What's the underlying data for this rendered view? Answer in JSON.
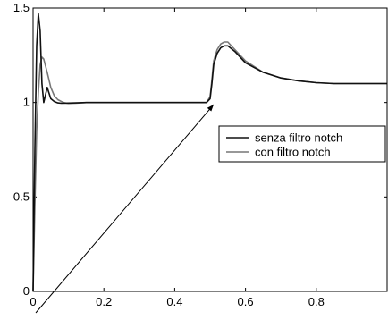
{
  "chart_data": {
    "type": "line",
    "title": "",
    "xlabel": "",
    "ylabel": "",
    "xlim": [
      0,
      1
    ],
    "ylim": [
      0,
      1.5
    ],
    "x_ticks": [
      0,
      0.2,
      0.4,
      0.6,
      0.8
    ],
    "x_tick_labels": [
      "0",
      "0.2",
      "0.4",
      "0.6",
      "0.8"
    ],
    "y_ticks": [
      0,
      0.5,
      1,
      1.5
    ],
    "y_tick_labels": [
      "0",
      "0.5",
      "1",
      "1.5"
    ],
    "grid": false,
    "legend_position": "center-right",
    "series": [
      {
        "name": "senza filtro notch",
        "color": "#111111",
        "x": [
          0,
          0.005,
          0.01,
          0.015,
          0.02,
          0.025,
          0.03,
          0.04,
          0.05,
          0.06,
          0.07,
          0.08,
          0.1,
          0.15,
          0.2,
          0.3,
          0.4,
          0.49,
          0.5,
          0.505,
          0.51,
          0.52,
          0.53,
          0.54,
          0.55,
          0.57,
          0.6,
          0.65,
          0.7,
          0.75,
          0.8,
          0.85,
          0.9,
          0.95,
          1.0
        ],
        "y": [
          0,
          0.75,
          1.3,
          1.47,
          1.38,
          1.1,
          1.0,
          1.08,
          1.02,
          1.005,
          0.998,
          0.996,
          0.997,
          1.0,
          1.0,
          1.0,
          1.0,
          1.0,
          1.02,
          1.1,
          1.2,
          1.26,
          1.29,
          1.3,
          1.3,
          1.27,
          1.21,
          1.16,
          1.13,
          1.115,
          1.105,
          1.1,
          1.1,
          1.1,
          1.1
        ]
      },
      {
        "name": "con filtro notch",
        "color": "#777777",
        "x": [
          0,
          0.005,
          0.01,
          0.015,
          0.02,
          0.025,
          0.03,
          0.04,
          0.05,
          0.06,
          0.07,
          0.08,
          0.09,
          0.1,
          0.12,
          0.15,
          0.2,
          0.3,
          0.4,
          0.49,
          0.5,
          0.505,
          0.51,
          0.52,
          0.53,
          0.54,
          0.55,
          0.57,
          0.6,
          0.65,
          0.7,
          0.75,
          0.8,
          0.85,
          0.9,
          0.95,
          1.0
        ],
        "y": [
          0,
          0.45,
          0.85,
          1.05,
          1.2,
          1.24,
          1.23,
          1.16,
          1.08,
          1.035,
          1.015,
          1.005,
          0.998,
          0.995,
          0.996,
          1.0,
          1.0,
          1.0,
          1.0,
          1.0,
          1.03,
          1.12,
          1.22,
          1.28,
          1.31,
          1.32,
          1.32,
          1.28,
          1.22,
          1.16,
          1.13,
          1.115,
          1.105,
          1.1,
          1.1,
          1.1,
          1.1
        ]
      }
    ]
  }
}
